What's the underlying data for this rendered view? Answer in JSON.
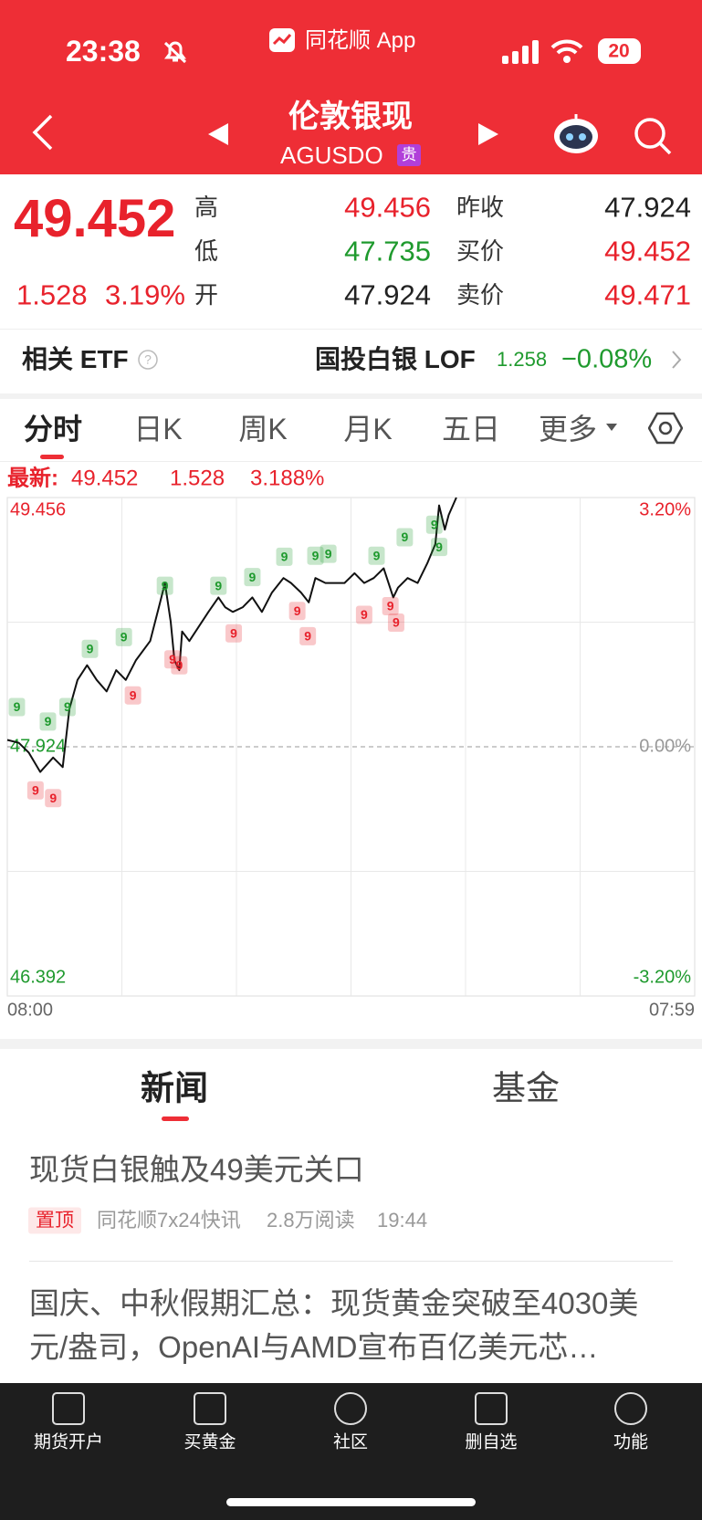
{
  "status_bar": {
    "time": "23:38",
    "app": "同花顺 App",
    "battery": "20"
  },
  "header": {
    "title": "伦敦银现",
    "code": "AGUSDO",
    "badge": "贵"
  },
  "quote": {
    "price": "49.452",
    "change": "1.528",
    "change_pct": "3.19%",
    "stats": [
      {
        "label": "高",
        "value": "49.456",
        "color": "#e8222c"
      },
      {
        "label": "低",
        "value": "47.735",
        "color": "#1f9a2e"
      },
      {
        "label": "开",
        "value": "47.924",
        "color": "#222222"
      },
      {
        "label": "昨收",
        "value": "47.924",
        "color": "#222222"
      },
      {
        "label": "买价",
        "value": "49.452",
        "color": "#e8222c"
      },
      {
        "label": "卖价",
        "value": "49.471",
        "color": "#e8222c"
      }
    ]
  },
  "etf": {
    "label": "相关 ETF",
    "name": "国投白银 LOF",
    "price": "1.258",
    "change": "−0.08%"
  },
  "tabs": [
    "分时",
    "日K",
    "周K",
    "月K",
    "五日",
    "更多"
  ],
  "chart_data": {
    "type": "line",
    "latest": {
      "label": "最新:",
      "price": "49.452",
      "change": "1.528",
      "change_pct": "3.188%"
    },
    "x": [
      0,
      24,
      45,
      69,
      96,
      116,
      130,
      147,
      167,
      187,
      208,
      228,
      248,
      269,
      299,
      320,
      330,
      342,
      350,
      360,
      366,
      381,
      401,
      421,
      442,
      456,
      472,
      493,
      513,
      533,
      554,
      578,
      594,
      615,
      631,
      645,
      666,
      686,
      706,
      727,
      747,
      767,
      788,
      808,
      818,
      838,
      859,
      879,
      896,
      904,
      916,
      924,
      940
    ],
    "values": [
      47.966,
      47.948,
      47.888,
      47.769,
      47.858,
      47.799,
      48.156,
      48.335,
      48.425,
      48.335,
      48.264,
      48.395,
      48.335,
      48.455,
      48.574,
      48.812,
      48.931,
      48.693,
      48.455,
      48.395,
      48.633,
      48.574,
      48.663,
      48.753,
      48.842,
      48.782,
      48.753,
      48.782,
      48.842,
      48.753,
      48.872,
      48.961,
      48.931,
      48.872,
      48.812,
      48.961,
      48.931,
      48.931,
      48.931,
      48.991,
      48.931,
      48.961,
      49.021,
      48.842,
      48.902,
      48.961,
      48.931,
      49.051,
      49.17,
      49.408,
      49.259,
      49.349,
      49.456
    ],
    "color": "#111111",
    "xlim": [
      0,
      1439
    ],
    "xticks": [
      {
        "value": 0,
        "label": "08:00"
      },
      {
        "value": 1439,
        "label": "07:59"
      }
    ],
    "ylim": [
      46.392,
      49.456
    ],
    "yticks": [
      49.456,
      47.924,
      46.392
    ],
    "y2lim": [
      -3.2,
      3.2
    ],
    "y2ticks": [
      {
        "value": 3.2,
        "label": "3.20%"
      },
      {
        "value": 0,
        "label": "0.00%"
      },
      {
        "value": -3.2,
        "label": "-3.20%"
      }
    ],
    "markers": [
      {
        "label": "9",
        "color": "#1f9a2e",
        "x": [
          20,
          85,
          126,
          173,
          244,
          330,
          442,
          513,
          580,
          645,
          672,
          773,
          832,
          894,
          904
        ],
        "values": [
          48.168,
          48.079,
          48.168,
          48.526,
          48.598,
          48.914,
          48.914,
          48.967,
          49.092,
          49.098,
          49.11,
          49.098,
          49.212,
          49.289,
          49.152
        ]
      },
      {
        "label": "9",
        "color": "#e8222c",
        "x": [
          59,
          96,
          263,
          346,
          360,
          474,
          607,
          629,
          747,
          802,
          814
        ],
        "values": [
          47.656,
          47.608,
          48.24,
          48.461,
          48.425,
          48.621,
          48.759,
          48.604,
          48.735,
          48.788,
          48.687
        ]
      }
    ]
  },
  "news_tabs": [
    "新闻",
    "基金"
  ],
  "news": [
    {
      "title": "现货白银触及49美元关口",
      "tag": "置顶",
      "source": "同花顺7x24快讯",
      "reads": "2.8万阅读",
      "time": "19:44"
    },
    {
      "title": "国庆、中秋假期汇总：现货黄金突破至4030美元/盎司，OpenAI与AMD宣布百亿美元芯…"
    }
  ],
  "nav": [
    "期货开户",
    "买黄金",
    "社区",
    "删自选",
    "功能"
  ]
}
